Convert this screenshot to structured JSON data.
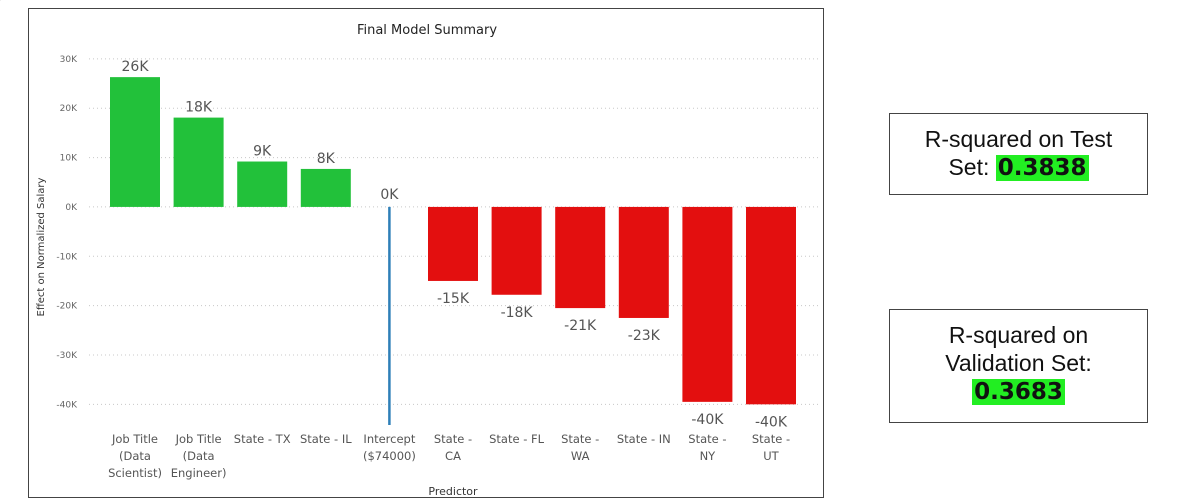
{
  "chart_data": {
    "type": "bar",
    "title": "Final Model Summary",
    "xlabel": "Predictor",
    "ylabel": "Effect on Normalized Salary",
    "ylim": [
      -45000,
      32000
    ],
    "yticks": [
      30000,
      20000,
      10000,
      0,
      -10000,
      -20000,
      -30000,
      -40000
    ],
    "ytick_labels": [
      "30K",
      "20K",
      "10K",
      "0K",
      "-10K",
      "-20K",
      "-30K",
      "-40K"
    ],
    "grid": true,
    "categories": [
      [
        "Job Title",
        "(Data",
        "Scientist)"
      ],
      [
        "Job Title",
        "(Data",
        "Engineer)"
      ],
      [
        "State - TX"
      ],
      [
        "State - IL"
      ],
      [
        "Intercept",
        "($74000)"
      ],
      [
        "State -",
        "CA"
      ],
      [
        "State - FL"
      ],
      [
        "State -",
        "WA"
      ],
      [
        "State - IN"
      ],
      [
        "State -",
        "NY"
      ],
      [
        "State -",
        "UT"
      ]
    ],
    "values": [
      26300,
      18100,
      9200,
      7700,
      0,
      -15000,
      -17800,
      -20500,
      -22500,
      -39500,
      -40000
    ],
    "data_labels": [
      "26K",
      "18K",
      "9K",
      "8K",
      "0K",
      "-15K",
      "-18K",
      "-21K",
      "-23K",
      "-40K",
      "-40K"
    ],
    "colors": {
      "positive": "#22c13a",
      "negative": "#e30f0f",
      "intercept": "#2e7fb8"
    }
  },
  "stats": {
    "test": {
      "label": "R-squared on Test Set:",
      "label_line1": "R-squared on Test",
      "label_line2": "Set:",
      "value": "0.3838"
    },
    "validation": {
      "label_line1": "R-squared on",
      "label_line2": "Validation Set:",
      "value": "0.3683"
    }
  }
}
